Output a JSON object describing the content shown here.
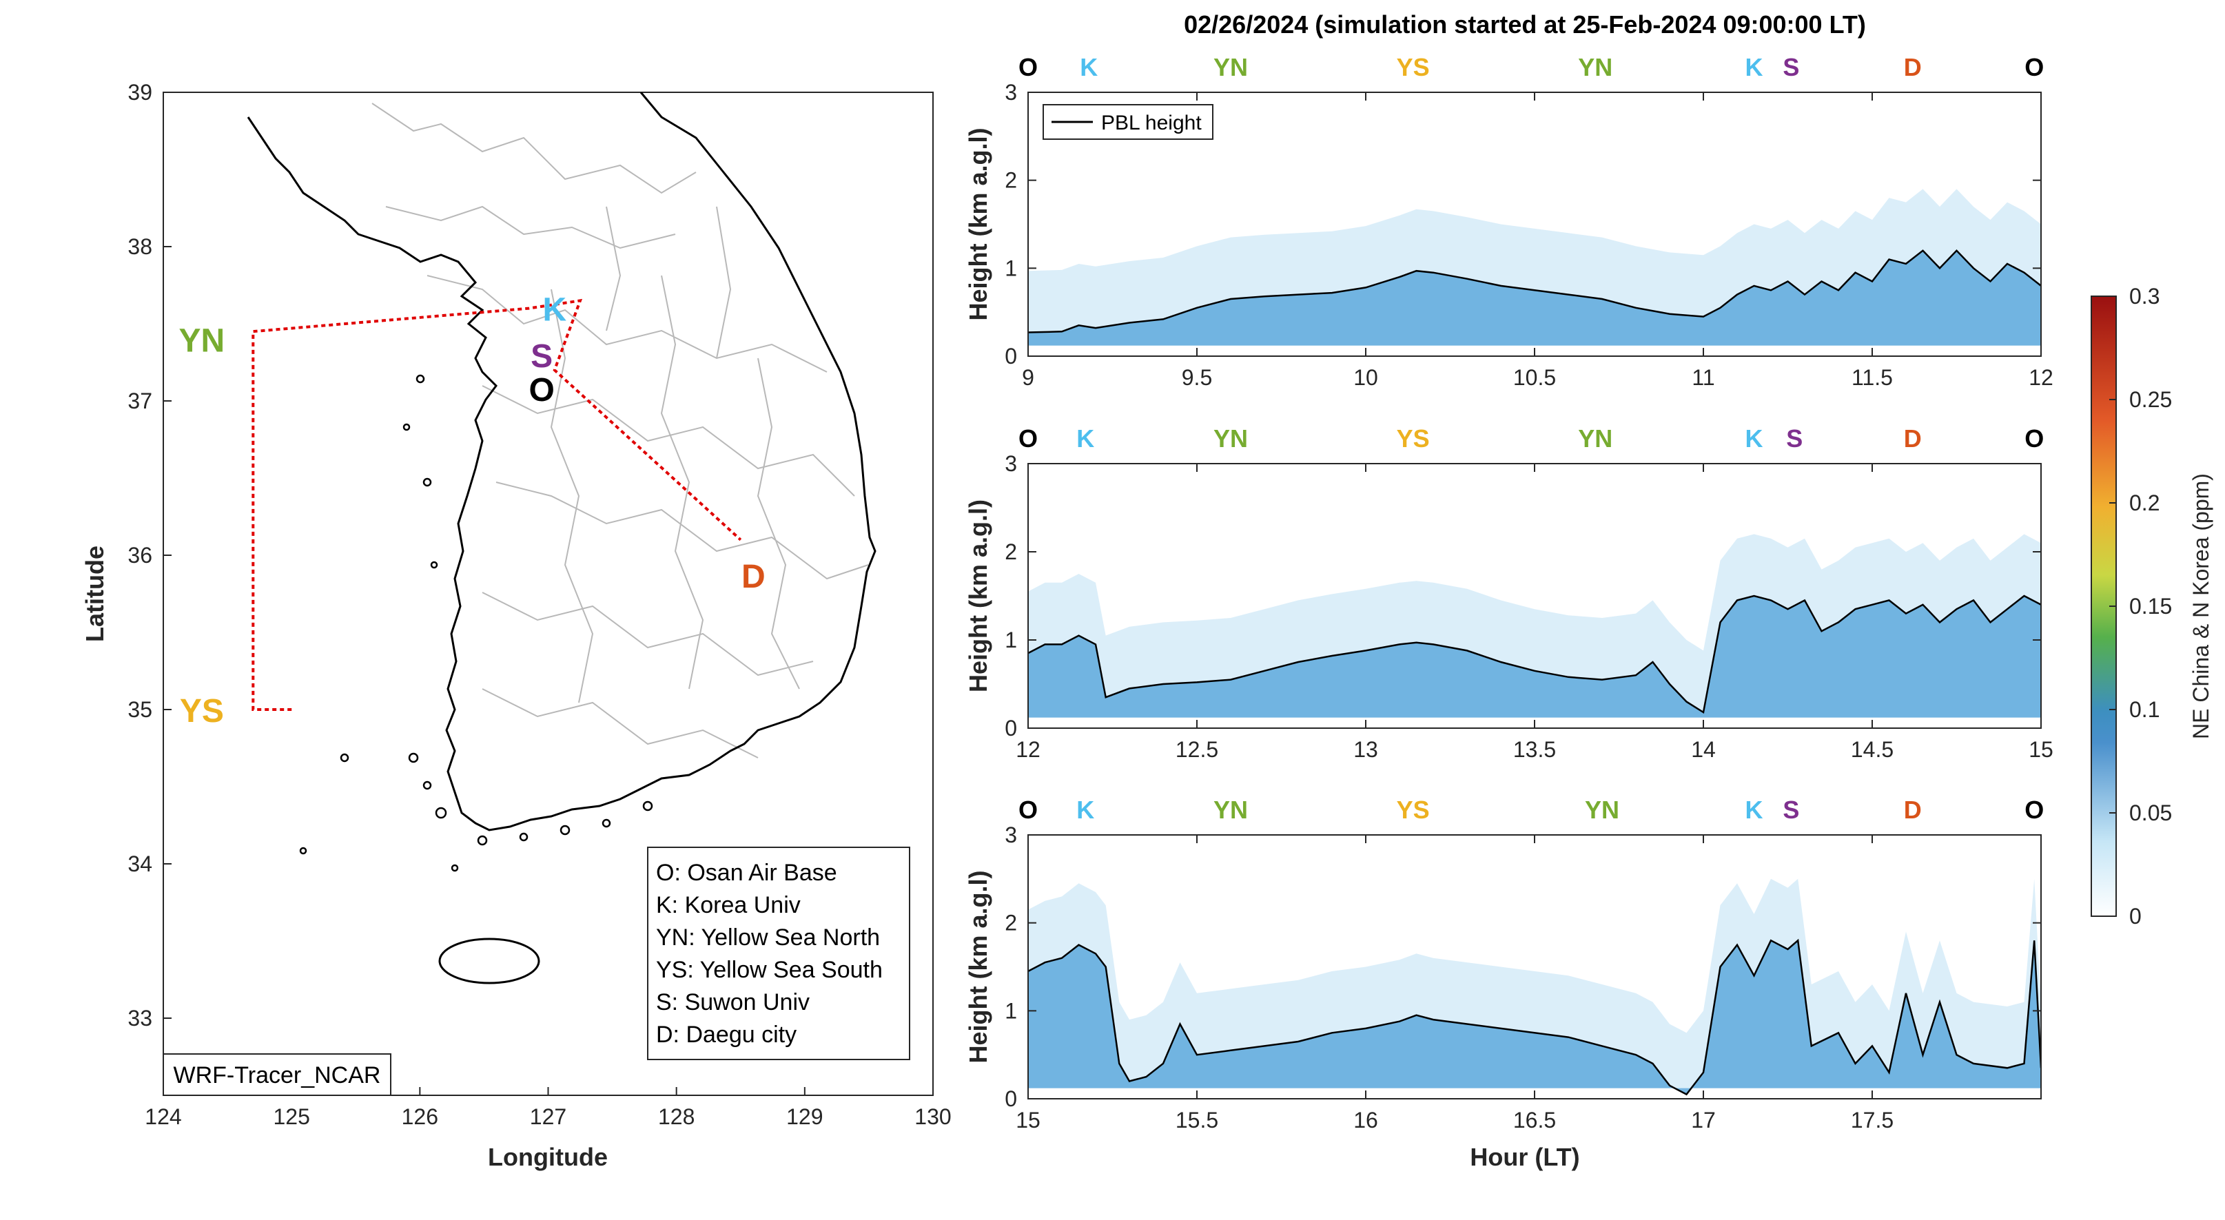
{
  "chart_data": [
    {
      "type": "map",
      "xlabel": "Longitude",
      "ylabel": "Latitude",
      "xlim": [
        124,
        130
      ],
      "ylim": [
        32.5,
        39
      ],
      "xticks": [
        "124",
        "125",
        "126",
        "127",
        "128",
        "129",
        "130"
      ],
      "yticks": [
        "33",
        "34",
        "35",
        "36",
        "37",
        "38",
        "39"
      ],
      "model_label": "WRF-Tracer_NCAR",
      "flight_track": [
        [
          125.0,
          35.0
        ],
        [
          124.7,
          35.0
        ],
        [
          124.7,
          37.45
        ],
        [
          126.85,
          37.6
        ],
        [
          127.25,
          37.65
        ],
        [
          127.05,
          37.2
        ],
        [
          128.5,
          36.1
        ]
      ],
      "sites": [
        {
          "code": "O",
          "lon": 126.95,
          "lat": 37.08,
          "color": "#000000"
        },
        {
          "code": "K",
          "lon": 127.05,
          "lat": 37.6,
          "color": "#4DBEEE"
        },
        {
          "code": "S",
          "lon": 126.95,
          "lat": 37.3,
          "color": "#7E2F8E"
        },
        {
          "code": "D",
          "lon": 128.6,
          "lat": 35.87,
          "color": "#D95319"
        },
        {
          "code": "YN",
          "lon": 124.3,
          "lat": 37.4,
          "color": "#77AC30"
        },
        {
          "code": "YS",
          "lon": 124.3,
          "lat": 35.0,
          "color": "#EDB120"
        }
      ],
      "legend": [
        "O: Osan Air Base",
        "K: Korea Univ",
        "YN: Yellow Sea North",
        "YS: Yellow Sea South",
        "S: Suwon Univ",
        "D: Daegu city"
      ]
    },
    {
      "type": "curtain",
      "title": "02/26/2024 (simulation started at 25-Feb-2024 09:00:00 LT)",
      "ylabel": "Height (km a.g.l)",
      "xlabel": "Hour (LT)",
      "ylim": [
        0,
        3
      ],
      "yticks": [
        "0",
        "1",
        "2",
        "3"
      ],
      "pbl_legend": "PBL height",
      "colorbar": {
        "label": "NE China & N Korea (ppm)",
        "range": [
          0,
          0.3
        ],
        "ticks": [
          "0",
          "0.05",
          "0.1",
          "0.15",
          "0.2",
          "0.25",
          "0.3"
        ]
      },
      "panels": [
        {
          "xlim": [
            9,
            12
          ],
          "xticks": [
            "9",
            "9.5",
            "10",
            "10.5",
            "11",
            "11.5",
            "12"
          ],
          "sites": [
            {
              "code": "O",
              "x": 9.0
            },
            {
              "code": "K",
              "x": 9.18
            },
            {
              "code": "YN",
              "x": 9.6
            },
            {
              "code": "YS",
              "x": 10.14
            },
            {
              "code": "YN",
              "x": 10.68
            },
            {
              "code": "K",
              "x": 11.15
            },
            {
              "code": "S",
              "x": 11.26
            },
            {
              "code": "D",
              "x": 11.62
            },
            {
              "code": "O",
              "x": 11.98
            }
          ],
          "pbl": [
            [
              9.0,
              0.27
            ],
            [
              9.1,
              0.28
            ],
            [
              9.15,
              0.35
            ],
            [
              9.2,
              0.32
            ],
            [
              9.3,
              0.38
            ],
            [
              9.4,
              0.42
            ],
            [
              9.5,
              0.55
            ],
            [
              9.6,
              0.65
            ],
            [
              9.7,
              0.68
            ],
            [
              9.8,
              0.7
            ],
            [
              9.9,
              0.72
            ],
            [
              10.0,
              0.78
            ],
            [
              10.1,
              0.9
            ],
            [
              10.15,
              0.97
            ],
            [
              10.2,
              0.95
            ],
            [
              10.3,
              0.88
            ],
            [
              10.4,
              0.8
            ],
            [
              10.5,
              0.75
            ],
            [
              10.6,
              0.7
            ],
            [
              10.7,
              0.65
            ],
            [
              10.8,
              0.55
            ],
            [
              10.9,
              0.48
            ],
            [
              11.0,
              0.45
            ],
            [
              11.05,
              0.55
            ],
            [
              11.1,
              0.7
            ],
            [
              11.15,
              0.8
            ],
            [
              11.2,
              0.75
            ],
            [
              11.25,
              0.85
            ],
            [
              11.3,
              0.7
            ],
            [
              11.35,
              0.85
            ],
            [
              11.4,
              0.75
            ],
            [
              11.45,
              0.95
            ],
            [
              11.5,
              0.85
            ],
            [
              11.55,
              1.1
            ],
            [
              11.6,
              1.05
            ],
            [
              11.65,
              1.2
            ],
            [
              11.7,
              1.0
            ],
            [
              11.75,
              1.2
            ],
            [
              11.8,
              1.0
            ],
            [
              11.85,
              0.85
            ],
            [
              11.9,
              1.05
            ],
            [
              11.95,
              0.95
            ],
            [
              12.0,
              0.8
            ]
          ]
        },
        {
          "xlim": [
            12,
            15
          ],
          "xticks": [
            "12",
            "12.5",
            "13",
            "13.5",
            "14",
            "14.5",
            "15"
          ],
          "sites": [
            {
              "code": "O",
              "x": 12.0
            },
            {
              "code": "K",
              "x": 12.17
            },
            {
              "code": "YN",
              "x": 12.6
            },
            {
              "code": "YS",
              "x": 13.14
            },
            {
              "code": "YN",
              "x": 13.68
            },
            {
              "code": "K",
              "x": 14.15
            },
            {
              "code": "S",
              "x": 14.27
            },
            {
              "code": "D",
              "x": 14.62
            },
            {
              "code": "O",
              "x": 14.98
            }
          ],
          "pbl": [
            [
              12.0,
              0.85
            ],
            [
              12.05,
              0.95
            ],
            [
              12.1,
              0.95
            ],
            [
              12.15,
              1.05
            ],
            [
              12.2,
              0.95
            ],
            [
              12.23,
              0.35
            ],
            [
              12.3,
              0.45
            ],
            [
              12.4,
              0.5
            ],
            [
              12.5,
              0.52
            ],
            [
              12.6,
              0.55
            ],
            [
              12.7,
              0.65
            ],
            [
              12.8,
              0.75
            ],
            [
              12.9,
              0.82
            ],
            [
              13.0,
              0.88
            ],
            [
              13.1,
              0.95
            ],
            [
              13.15,
              0.97
            ],
            [
              13.2,
              0.95
            ],
            [
              13.3,
              0.88
            ],
            [
              13.4,
              0.75
            ],
            [
              13.5,
              0.65
            ],
            [
              13.6,
              0.58
            ],
            [
              13.7,
              0.55
            ],
            [
              13.8,
              0.6
            ],
            [
              13.85,
              0.75
            ],
            [
              13.9,
              0.5
            ],
            [
              13.95,
              0.3
            ],
            [
              14.0,
              0.18
            ],
            [
              14.05,
              1.2
            ],
            [
              14.1,
              1.45
            ],
            [
              14.15,
              1.5
            ],
            [
              14.2,
              1.45
            ],
            [
              14.25,
              1.35
            ],
            [
              14.3,
              1.45
            ],
            [
              14.35,
              1.1
            ],
            [
              14.4,
              1.2
            ],
            [
              14.45,
              1.35
            ],
            [
              14.5,
              1.4
            ],
            [
              14.55,
              1.45
            ],
            [
              14.6,
              1.3
            ],
            [
              14.65,
              1.4
            ],
            [
              14.7,
              1.2
            ],
            [
              14.75,
              1.35
            ],
            [
              14.8,
              1.45
            ],
            [
              14.85,
              1.2
            ],
            [
              14.9,
              1.35
            ],
            [
              14.95,
              1.5
            ],
            [
              15.0,
              1.4
            ]
          ]
        },
        {
          "xlim": [
            15,
            18
          ],
          "xticks": [
            "15",
            "15.5",
            "16",
            "16.5",
            "17",
            "17.5"
          ],
          "sites": [
            {
              "code": "O",
              "x": 15.0
            },
            {
              "code": "K",
              "x": 15.17
            },
            {
              "code": "YN",
              "x": 15.6
            },
            {
              "code": "YS",
              "x": 16.14
            },
            {
              "code": "YN",
              "x": 16.7
            },
            {
              "code": "K",
              "x": 17.15
            },
            {
              "code": "S",
              "x": 17.26
            },
            {
              "code": "D",
              "x": 17.62
            },
            {
              "code": "O",
              "x": 17.98
            }
          ],
          "pbl": [
            [
              15.0,
              1.45
            ],
            [
              15.05,
              1.55
            ],
            [
              15.1,
              1.6
            ],
            [
              15.15,
              1.75
            ],
            [
              15.2,
              1.65
            ],
            [
              15.23,
              1.5
            ],
            [
              15.27,
              0.4
            ],
            [
              15.3,
              0.2
            ],
            [
              15.35,
              0.25
            ],
            [
              15.4,
              0.4
            ],
            [
              15.45,
              0.85
            ],
            [
              15.5,
              0.5
            ],
            [
              15.6,
              0.55
            ],
            [
              15.7,
              0.6
            ],
            [
              15.8,
              0.65
            ],
            [
              15.9,
              0.75
            ],
            [
              16.0,
              0.8
            ],
            [
              16.1,
              0.88
            ],
            [
              16.15,
              0.95
            ],
            [
              16.2,
              0.9
            ],
            [
              16.3,
              0.85
            ],
            [
              16.4,
              0.8
            ],
            [
              16.5,
              0.75
            ],
            [
              16.6,
              0.7
            ],
            [
              16.7,
              0.6
            ],
            [
              16.8,
              0.5
            ],
            [
              16.85,
              0.4
            ],
            [
              16.9,
              0.15
            ],
            [
              16.95,
              0.05
            ],
            [
              17.0,
              0.3
            ],
            [
              17.05,
              1.5
            ],
            [
              17.1,
              1.75
            ],
            [
              17.15,
              1.4
            ],
            [
              17.2,
              1.8
            ],
            [
              17.25,
              1.7
            ],
            [
              17.28,
              1.8
            ],
            [
              17.32,
              0.6
            ],
            [
              17.4,
              0.75
            ],
            [
              17.45,
              0.4
            ],
            [
              17.5,
              0.6
            ],
            [
              17.55,
              0.3
            ],
            [
              17.6,
              1.2
            ],
            [
              17.65,
              0.5
            ],
            [
              17.7,
              1.1
            ],
            [
              17.75,
              0.5
            ],
            [
              17.8,
              0.4
            ],
            [
              17.9,
              0.35
            ],
            [
              17.95,
              0.4
            ],
            [
              17.98,
              1.8
            ],
            [
              18.0,
              0.35
            ]
          ]
        }
      ]
    }
  ]
}
